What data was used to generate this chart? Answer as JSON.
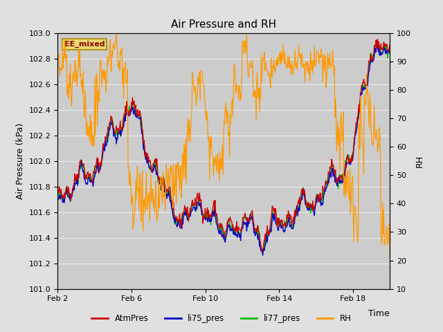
{
  "title": "Air Pressure and RH",
  "xlabel": "Time",
  "ylabel_left": "Air Pressure (kPa)",
  "ylabel_right": "RH",
  "ylim_left": [
    101.0,
    103.0
  ],
  "ylim_right": [
    10,
    100
  ],
  "yticks_left": [
    101.0,
    101.2,
    101.4,
    101.6,
    101.8,
    102.0,
    102.2,
    102.4,
    102.6,
    102.8,
    103.0
  ],
  "yticks_right": [
    10,
    20,
    30,
    40,
    50,
    60,
    70,
    80,
    90,
    100
  ],
  "xtick_labels": [
    "Feb 2",
    "Feb 6",
    "Feb 10",
    "Feb 14",
    "Feb 18"
  ],
  "xtick_positions": [
    2,
    6,
    10,
    14,
    18
  ],
  "xlim": [
    2,
    20
  ],
  "line_colors": {
    "AtmPres": "#cc0000",
    "li75_pres": "#0000cc",
    "li77_pres": "#00bb00",
    "RH": "#ff9900"
  },
  "legend_label": "EE_mixed",
  "bg_color_outer": "#e0e0e0",
  "bg_color_inner": "#cccccc",
  "grid_color": "#e8e8e8",
  "title_fontsize": 11,
  "axis_label_fontsize": 9,
  "tick_fontsize": 8,
  "legend_box_facecolor": "#e8d870",
  "legend_box_edgecolor": "#aa8800",
  "legend_text_color": "#880000"
}
